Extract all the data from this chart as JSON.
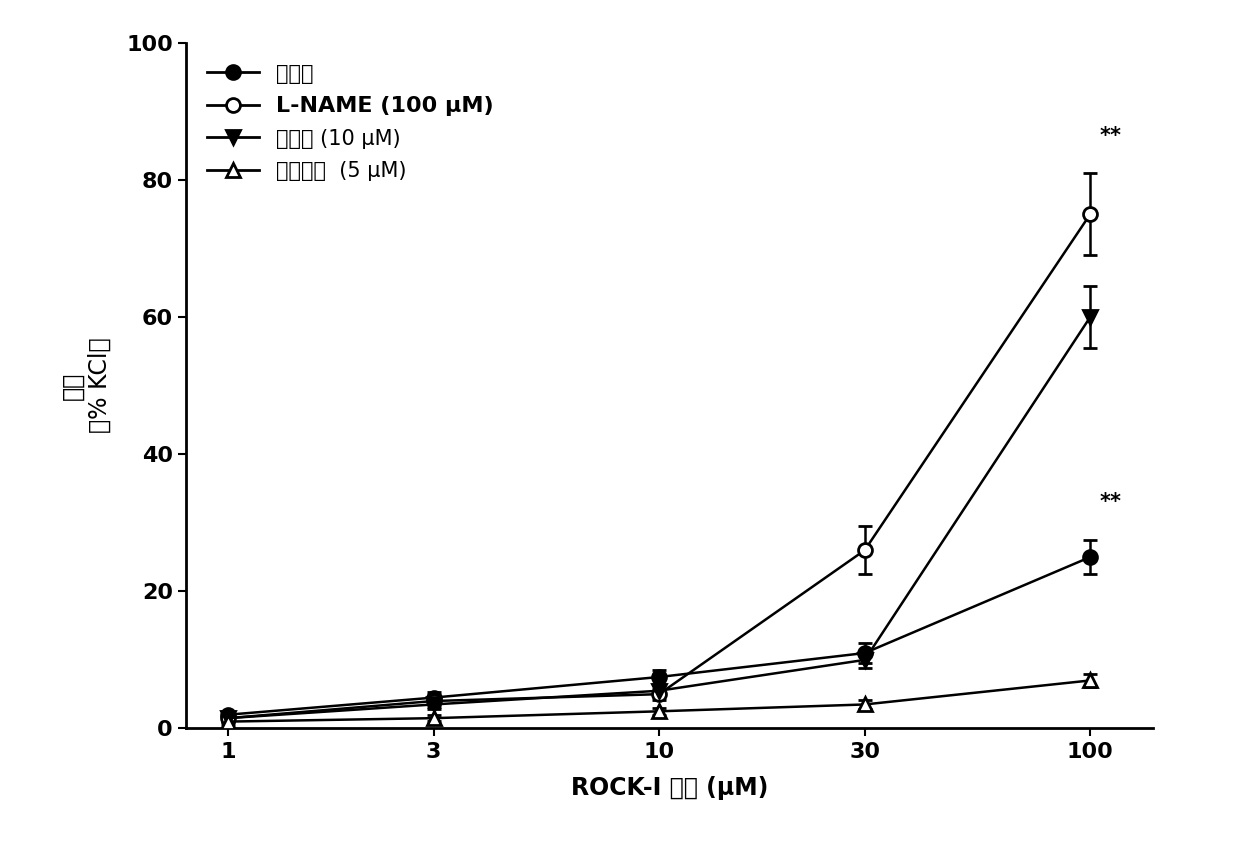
{
  "x_values": [
    1,
    3,
    10,
    30,
    100
  ],
  "xlabel": "ROCK-I 浓度 (μM)",
  "ylabel_line1": "收缩",
  "ylabel_line2": "(％ KCl)",
  "ylim": [
    0,
    100
  ],
  "yticks": [
    0,
    20,
    40,
    60,
    80,
    100
  ],
  "xticks": [
    1,
    3,
    10,
    30,
    100
  ],
  "series": [
    {
      "label": "对照组",
      "y": [
        2.0,
        4.5,
        7.5,
        11.0,
        25.0
      ],
      "yerr": [
        0.5,
        0.8,
        1.0,
        1.5,
        2.5
      ],
      "marker": "o",
      "fillstyle": "full",
      "color": "black",
      "annotation": "**",
      "ann_yoffset": 4.0
    },
    {
      "label": "L-NAME (100 μM)",
      "y": [
        1.5,
        4.0,
        5.0,
        26.0,
        75.0
      ],
      "yerr": [
        0.5,
        0.8,
        0.8,
        3.5,
        6.0
      ],
      "marker": "o",
      "fillstyle": "none",
      "color": "black",
      "annotation": "**",
      "ann_yoffset": 4.0
    },
    {
      "label": "亚甲蓝 (10 μM)",
      "y": [
        1.5,
        3.5,
        5.5,
        10.0,
        60.0
      ],
      "yerr": [
        0.4,
        0.7,
        0.8,
        1.2,
        4.5
      ],
      "marker": "v",
      "fillstyle": "full",
      "color": "black",
      "annotation": null,
      "ann_yoffset": 0
    },
    {
      "label": "吲哚美辛  (5 μM)",
      "y": [
        1.0,
        1.5,
        2.5,
        3.5,
        7.0
      ],
      "yerr": [
        0.3,
        0.4,
        0.5,
        0.7,
        1.0
      ],
      "marker": "^",
      "fillstyle": "none",
      "color": "black",
      "annotation": null,
      "ann_yoffset": 0
    }
  ],
  "background_color": "white",
  "figsize": [
    12.4,
    8.57
  ],
  "dpi": 100,
  "legend_labels": [
    "对照组",
    "L-NAME (100 μM)",
    "亚甲蓝 (10 μM)",
    "吲哚美辛  (5 μM)"
  ]
}
